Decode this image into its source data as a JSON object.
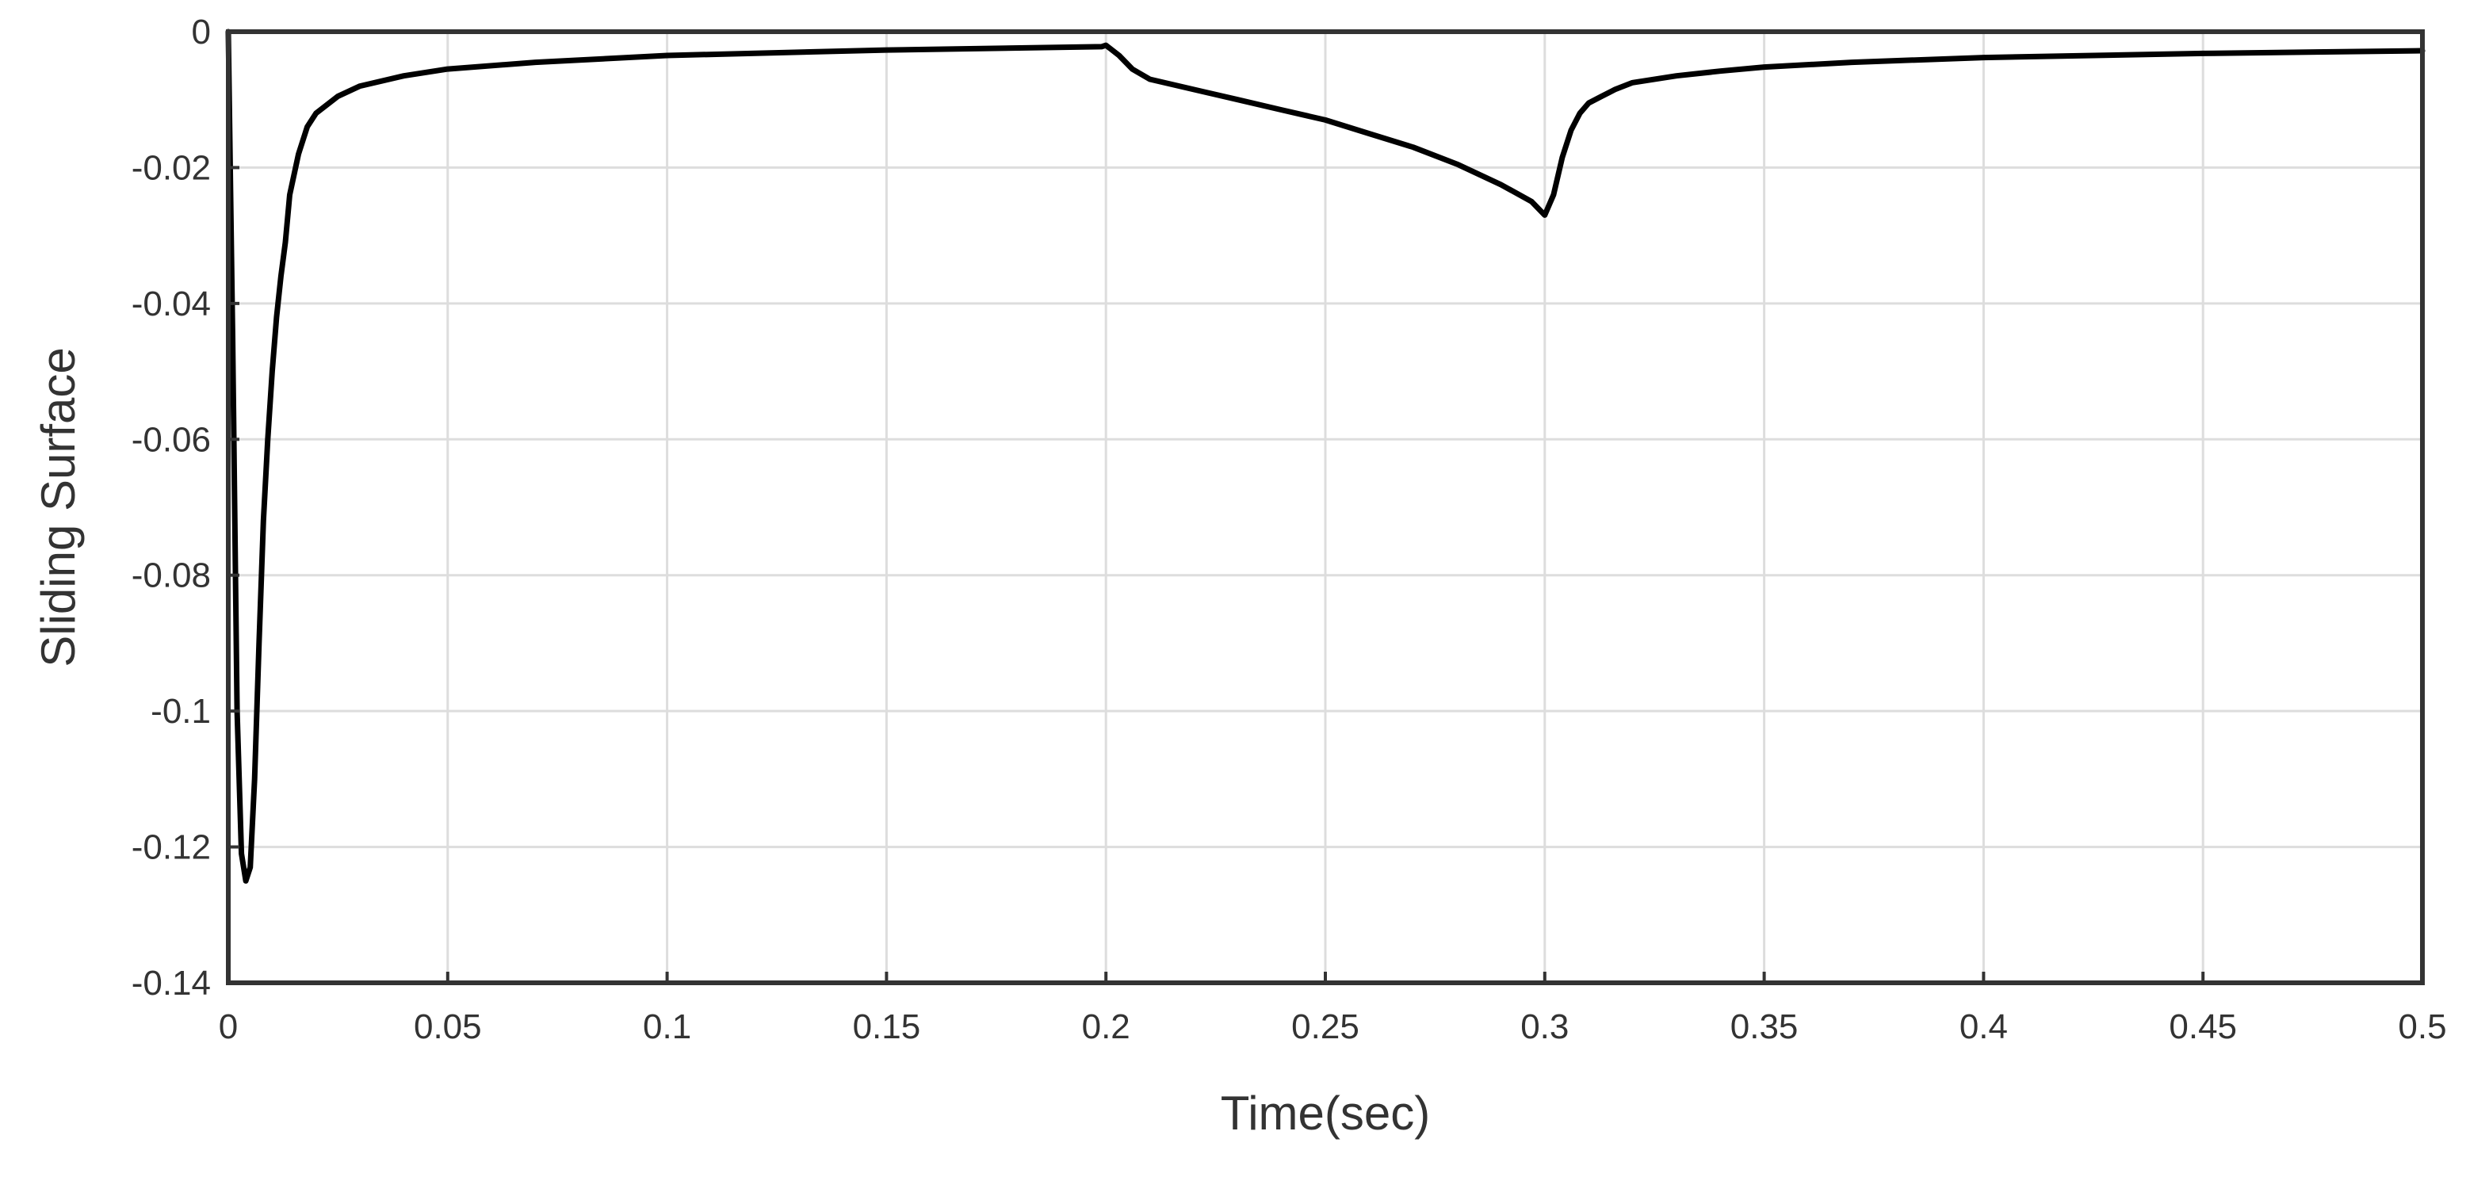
{
  "chart_data": {
    "type": "line",
    "title": "",
    "xlabel": "Time(sec)",
    "ylabel": "Sliding Surface",
    "xlim": [
      0,
      0.5
    ],
    "ylim": [
      -0.14,
      0
    ],
    "grid": true,
    "legend": "none",
    "x_ticks": [
      0,
      0.05,
      0.1,
      0.15,
      0.2,
      0.25,
      0.3,
      0.35,
      0.4,
      0.45,
      0.5
    ],
    "x_tick_labels": [
      "0",
      "0.05",
      "0.1",
      "0.15",
      "0.2",
      "0.25",
      "0.3",
      "0.35",
      "0.4",
      "0.45",
      "0.5"
    ],
    "y_ticks": [
      0,
      -0.02,
      -0.04,
      -0.06,
      -0.08,
      -0.1,
      -0.12,
      -0.14
    ],
    "y_tick_labels": [
      "0",
      "-0.02",
      "-0.04",
      "-0.06",
      "-0.08",
      "-0.1",
      "-0.12",
      "-0.14"
    ],
    "colors": {
      "line": "#000000",
      "grid": "#dddddd",
      "axes": "#333333"
    },
    "series": [
      {
        "x": [
          0,
          0.001,
          0.002,
          0.003,
          0.004,
          0.005,
          0.006,
          0.007,
          0.008,
          0.009,
          0.01,
          0.011,
          0.012,
          0.013,
          0.014,
          0.016,
          0.018,
          0.02,
          0.025,
          0.03,
          0.04,
          0.05,
          0.07,
          0.1,
          0.15,
          0.199,
          0.2,
          0.203,
          0.206,
          0.21,
          0.22,
          0.23,
          0.24,
          0.25,
          0.26,
          0.27,
          0.28,
          0.29,
          0.297,
          0.3,
          0.302,
          0.304,
          0.306,
          0.308,
          0.31,
          0.313,
          0.316,
          0.32,
          0.33,
          0.34,
          0.35,
          0.37,
          0.4,
          0.45,
          0.5
        ],
        "y": [
          0,
          -0.045,
          -0.1,
          -0.121,
          -0.125,
          -0.123,
          -0.11,
          -0.09,
          -0.072,
          -0.06,
          -0.05,
          -0.042,
          -0.036,
          -0.031,
          -0.024,
          -0.018,
          -0.014,
          -0.012,
          -0.0095,
          -0.008,
          -0.0065,
          -0.0055,
          -0.0045,
          -0.0035,
          -0.0027,
          -0.0022,
          -0.002,
          -0.0035,
          -0.0055,
          -0.007,
          -0.0085,
          -0.01,
          -0.0115,
          -0.013,
          -0.015,
          -0.017,
          -0.0195,
          -0.0225,
          -0.025,
          -0.027,
          -0.024,
          -0.0185,
          -0.0145,
          -0.012,
          -0.0105,
          -0.0095,
          -0.0085,
          -0.0075,
          -0.0065,
          -0.0058,
          -0.0052,
          -0.0045,
          -0.0038,
          -0.0032,
          -0.0028
        ]
      }
    ]
  }
}
